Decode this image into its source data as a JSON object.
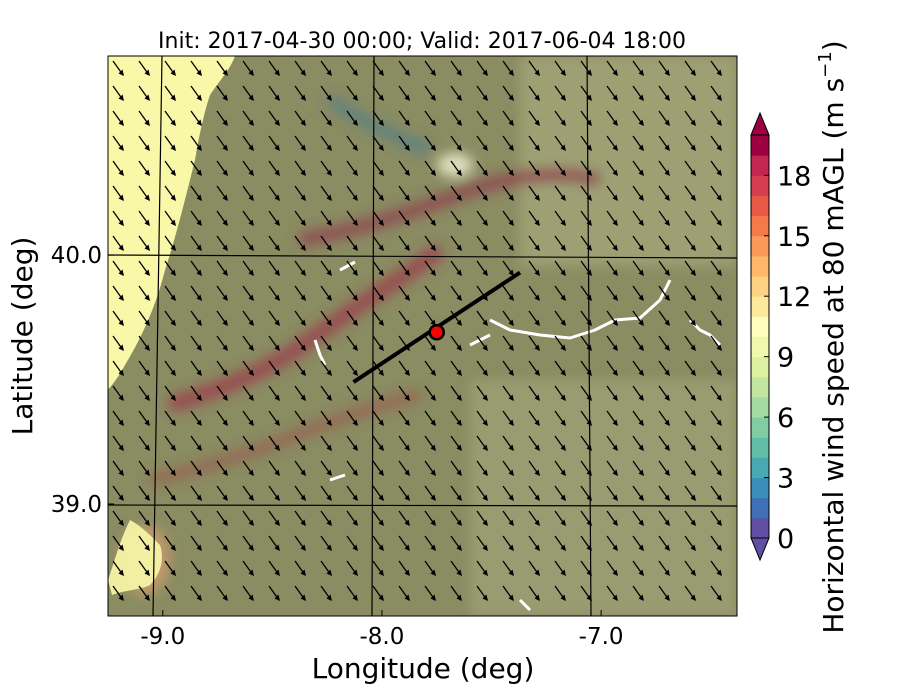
{
  "title": "Init: 2017-04-30 00:00; Valid: 2017-06-04 18:00",
  "chart_data": {
    "type": "heatmap",
    "title": "Init: 2017-04-30 00:00; Valid: 2017-06-04 18:00",
    "xlabel": "Longitude (deg)",
    "ylabel": "Latitude (deg)",
    "xlim": [
      -9.25,
      -6.38
    ],
    "ylim": [
      38.55,
      40.8
    ],
    "x_ticks": [
      -9.0,
      -8.0,
      -7.0
    ],
    "x_tick_labels": [
      "-9.0",
      "-8.0",
      "-7.0"
    ],
    "y_ticks": [
      39.0,
      40.0
    ],
    "y_tick_labels": [
      "39.0",
      "40.0"
    ],
    "grid": true,
    "colorbar": {
      "label": "Horizontal wind speed at 80 mAGL (m s$^{-1}$)",
      "label_main": "Horizontal wind speed at 80 mAGL (m s",
      "label_sup": "−1",
      "label_close": ")",
      "range": [
        0,
        20
      ],
      "extend": "both",
      "ticks": [
        0,
        3,
        6,
        9,
        12,
        15,
        18
      ],
      "tick_labels": [
        "0",
        "3",
        "6",
        "9",
        "12",
        "15",
        "18"
      ],
      "levels": [
        0,
        1,
        2,
        3,
        4,
        5,
        6,
        7,
        8,
        9,
        10,
        11,
        12,
        13,
        14,
        15,
        16,
        17,
        18,
        19,
        20
      ],
      "colors": [
        "#5e4fa2",
        "#3f6fb5",
        "#3a8fb8",
        "#47a9b1",
        "#62bda6",
        "#82cca4",
        "#a3dba3",
        "#c2e69f",
        "#dcf0a2",
        "#eff8ac",
        "#fffdbe",
        "#fee99a",
        "#fed283",
        "#fdb768",
        "#fa9a59",
        "#f47a4a",
        "#e75944",
        "#d63d4e",
        "#c22651",
        "#9e0142"
      ]
    },
    "wind_direction": "toward south-southeast",
    "marker": {
      "lon": -7.75,
      "lat": 39.69,
      "color": "#ff0000"
    },
    "cross_section_line": {
      "lon": [
        -8.13,
        -7.37
      ],
      "lat": [
        39.49,
        39.93
      ],
      "color": "#000000"
    },
    "colors": {
      "terrain": "#8a8c62",
      "ocean": "#f8f8a8",
      "ridge": "#9a4a52",
      "rivers": "#ffffff",
      "grid_lines": "#000000"
    }
  }
}
